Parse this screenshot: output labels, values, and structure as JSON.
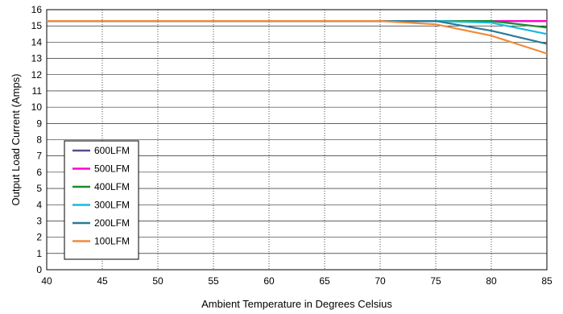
{
  "chart_data": {
    "type": "line",
    "title": "",
    "xlabel": "Ambient Temperature in Degrees Celsius",
    "ylabel": "Output Load Current (Amps)",
    "xlim": [
      40,
      85
    ],
    "ylim": [
      0,
      16
    ],
    "x_ticks": [
      "40",
      "45",
      "50",
      "55",
      "60",
      "65",
      "70",
      "75",
      "80",
      "85"
    ],
    "y_ticks": [
      "0",
      "1",
      "2",
      "3",
      "4",
      "5",
      "6",
      "7",
      "8",
      "9",
      "10",
      "11",
      "12",
      "13",
      "14",
      "15",
      "16"
    ],
    "grid": true,
    "legend_position": "bottom-left",
    "series": [
      {
        "name": "600LFM",
        "color": "#5b4a8a",
        "x": [
          40,
          70,
          75,
          80,
          85
        ],
        "y": [
          15.3,
          15.3,
          15.3,
          15.3,
          15.3
        ]
      },
      {
        "name": "500LFM",
        "color": "#ff00cc",
        "x": [
          40,
          70,
          75,
          80,
          85
        ],
        "y": [
          15.3,
          15.3,
          15.3,
          15.3,
          15.3
        ]
      },
      {
        "name": "400LFM",
        "color": "#1a8a2a",
        "x": [
          40,
          70,
          75,
          80,
          85
        ],
        "y": [
          15.3,
          15.3,
          15.3,
          15.3,
          14.9
        ]
      },
      {
        "name": "300LFM",
        "color": "#1ab8e0",
        "x": [
          40,
          70,
          75,
          80,
          85
        ],
        "y": [
          15.3,
          15.3,
          15.3,
          15.2,
          14.5
        ]
      },
      {
        "name": "200LFM",
        "color": "#2a7a9a",
        "x": [
          40,
          70,
          75,
          80,
          85
        ],
        "y": [
          15.3,
          15.3,
          15.3,
          14.7,
          13.9
        ]
      },
      {
        "name": "100LFM",
        "color": "#f08a3a",
        "x": [
          40,
          70,
          75,
          80,
          85
        ],
        "y": [
          15.3,
          15.3,
          15.1,
          14.4,
          13.3
        ]
      }
    ]
  }
}
